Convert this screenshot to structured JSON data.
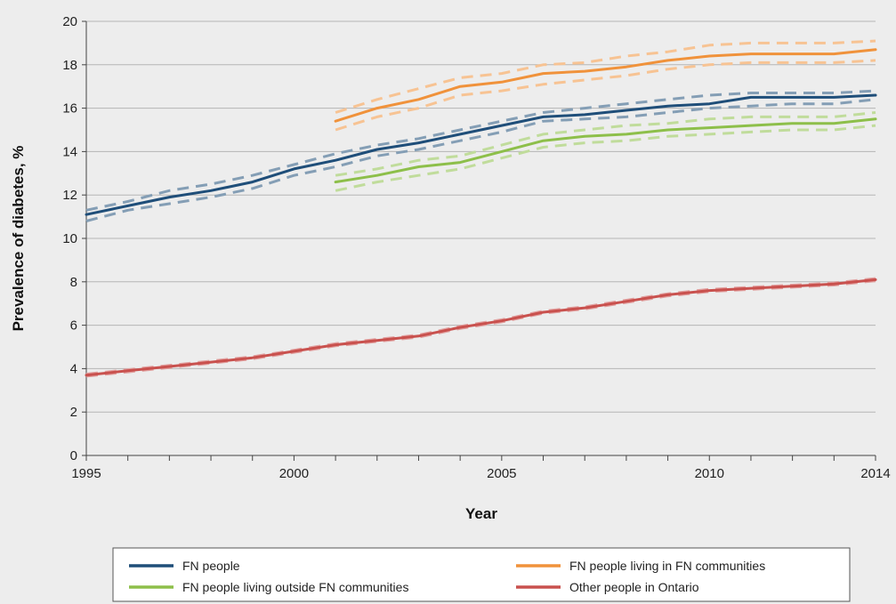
{
  "chart_data": {
    "type": "line",
    "title": "",
    "xlabel": "Year",
    "ylabel": "Prevalence of diabetes, %",
    "xlim": [
      1995,
      2014
    ],
    "ylim": [
      0,
      20
    ],
    "x_ticks": [
      1995,
      2000,
      2005,
      2010,
      2014
    ],
    "y_ticks": [
      0,
      2,
      4,
      6,
      8,
      10,
      12,
      14,
      16,
      18,
      20
    ],
    "grid": "horizontal",
    "legend_position": "bottom",
    "series": [
      {
        "name": "FN people",
        "color": "#1f4e79",
        "x": [
          1995,
          1996,
          1997,
          1998,
          1999,
          2000,
          2001,
          2002,
          2003,
          2004,
          2005,
          2006,
          2007,
          2008,
          2009,
          2010,
          2011,
          2012,
          2013,
          2014
        ],
        "values": [
          11.1,
          11.5,
          11.9,
          12.2,
          12.6,
          13.2,
          13.6,
          14.1,
          14.4,
          14.8,
          15.2,
          15.6,
          15.7,
          15.9,
          16.1,
          16.2,
          16.5,
          16.5,
          16.5,
          16.6
        ],
        "ci_lower": [
          10.8,
          11.3,
          11.6,
          11.9,
          12.3,
          12.9,
          13.3,
          13.8,
          14.1,
          14.5,
          14.9,
          15.4,
          15.5,
          15.6,
          15.8,
          16.0,
          16.1,
          16.2,
          16.2,
          16.4
        ],
        "ci_upper": [
          11.3,
          11.7,
          12.2,
          12.5,
          12.9,
          13.4,
          13.9,
          14.3,
          14.6,
          15.0,
          15.4,
          15.8,
          16.0,
          16.2,
          16.4,
          16.6,
          16.7,
          16.7,
          16.7,
          16.8
        ]
      },
      {
        "name": "FN people living in FN communities",
        "color": "#f0923b",
        "x": [
          2001,
          2002,
          2003,
          2004,
          2005,
          2006,
          2007,
          2008,
          2009,
          2010,
          2011,
          2012,
          2013,
          2014
        ],
        "values": [
          15.4,
          16.0,
          16.4,
          17.0,
          17.2,
          17.6,
          17.7,
          17.9,
          18.2,
          18.4,
          18.5,
          18.5,
          18.5,
          18.7
        ],
        "ci_lower": [
          15.0,
          15.6,
          16.0,
          16.6,
          16.8,
          17.1,
          17.3,
          17.5,
          17.8,
          18.0,
          18.1,
          18.1,
          18.1,
          18.2
        ],
        "ci_upper": [
          15.8,
          16.4,
          16.9,
          17.4,
          17.6,
          18.0,
          18.1,
          18.4,
          18.6,
          18.9,
          19.0,
          19.0,
          19.0,
          19.1
        ]
      },
      {
        "name": "FN people living outside FN communities",
        "color": "#8dbf4a",
        "x": [
          2001,
          2002,
          2003,
          2004,
          2005,
          2006,
          2007,
          2008,
          2009,
          2010,
          2011,
          2012,
          2013,
          2014
        ],
        "values": [
          12.6,
          12.9,
          13.3,
          13.5,
          14.0,
          14.5,
          14.7,
          14.8,
          15.0,
          15.1,
          15.2,
          15.3,
          15.3,
          15.5
        ],
        "ci_lower": [
          12.2,
          12.6,
          12.9,
          13.2,
          13.7,
          14.2,
          14.4,
          14.5,
          14.7,
          14.8,
          14.9,
          15.0,
          15.0,
          15.2
        ],
        "ci_upper": [
          12.9,
          13.2,
          13.6,
          13.8,
          14.3,
          14.8,
          15.0,
          15.2,
          15.3,
          15.5,
          15.6,
          15.6,
          15.6,
          15.8
        ]
      },
      {
        "name": "Other people in Ontario",
        "color": "#c9514e",
        "x": [
          1995,
          1996,
          1997,
          1998,
          1999,
          2000,
          2001,
          2002,
          2003,
          2004,
          2005,
          2006,
          2007,
          2008,
          2009,
          2010,
          2011,
          2012,
          2013,
          2014
        ],
        "values": [
          3.7,
          3.9,
          4.1,
          4.3,
          4.5,
          4.8,
          5.1,
          5.3,
          5.5,
          5.9,
          6.2,
          6.6,
          6.8,
          7.1,
          7.4,
          7.6,
          7.7,
          7.8,
          7.9,
          8.1
        ],
        "ci_lower": [
          3.65,
          3.85,
          4.05,
          4.25,
          4.45,
          4.75,
          5.05,
          5.25,
          5.45,
          5.85,
          6.15,
          6.55,
          6.75,
          7.05,
          7.35,
          7.55,
          7.65,
          7.75,
          7.85,
          8.05
        ],
        "ci_upper": [
          3.75,
          3.95,
          4.15,
          4.35,
          4.55,
          4.85,
          5.15,
          5.35,
          5.55,
          5.95,
          6.25,
          6.65,
          6.85,
          7.15,
          7.45,
          7.65,
          7.75,
          7.85,
          7.95,
          8.15
        ]
      }
    ]
  }
}
